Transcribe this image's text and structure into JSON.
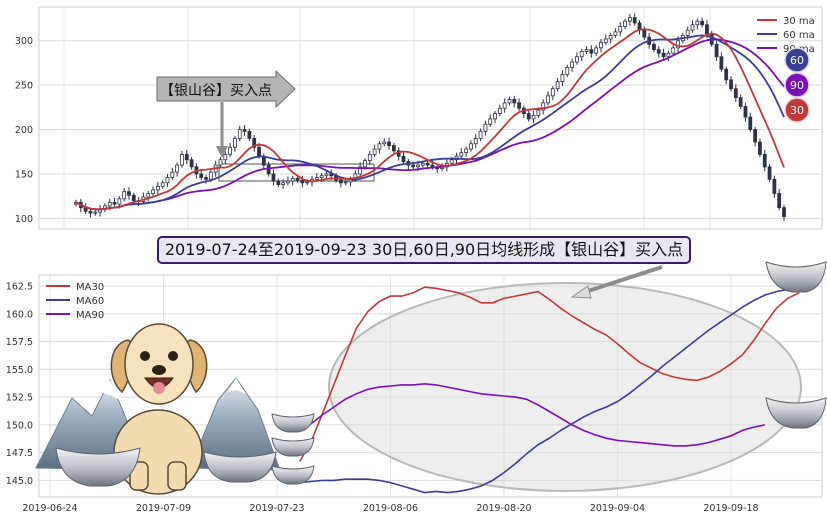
{
  "chart_data": [
    {
      "type": "candlestick",
      "yticks": [
        100,
        150,
        200,
        250,
        300
      ],
      "ylim": [
        88,
        338
      ],
      "legend": {
        "placement": "top-right",
        "entries": [
          "30 ma",
          "60 ma",
          "90 ma"
        ]
      },
      "series_colors": {
        "ma30": "#c0393b",
        "ma60": "#3a3f96",
        "ma90": "#7a10b8",
        "candle": "#2c3346"
      },
      "annotation": "【银山谷】买入点",
      "end_badges": [
        "60",
        "90",
        "30"
      ],
      "candles_close": [
        118,
        112,
        108,
        106,
        107,
        110,
        114,
        118,
        116,
        122,
        130,
        126,
        120,
        119,
        124,
        128,
        132,
        136,
        140,
        146,
        152,
        160,
        172,
        166,
        158,
        150,
        146,
        144,
        152,
        160,
        166,
        172,
        180,
        190,
        200,
        198,
        190,
        180,
        170,
        160,
        150,
        142,
        138,
        140,
        142,
        145,
        143,
        140,
        141,
        144,
        146,
        148,
        150,
        148,
        143,
        140,
        141,
        144,
        150,
        158,
        165,
        172,
        178,
        184,
        186,
        182,
        176,
        170,
        164,
        160,
        158,
        160,
        162,
        160,
        158,
        156,
        158,
        162,
        166,
        170,
        174,
        178,
        184,
        190,
        198,
        206,
        212,
        218,
        224,
        230,
        234,
        230,
        224,
        218,
        212,
        216,
        222,
        230,
        238,
        246,
        254,
        262,
        270,
        276,
        282,
        288,
        290,
        286,
        292,
        298,
        302,
        306,
        310,
        316,
        322,
        326,
        320,
        312,
        304,
        296,
        290,
        286,
        282,
        286,
        292,
        300,
        306,
        312,
        318,
        322,
        318,
        308,
        296,
        282,
        268,
        256,
        246,
        236,
        226,
        214,
        200,
        186,
        172,
        158,
        144,
        128,
        112,
        102
      ]
    },
    {
      "type": "line",
      "x_tick_labels": [
        "2019-06-24",
        "2019-07-09",
        "2019-07-23",
        "2019-08-06",
        "2019-08-20",
        "2019-09-04",
        "2019-09-18"
      ],
      "x_tick_index": [
        0,
        10,
        20,
        30,
        40,
        50,
        60
      ],
      "yticks": [
        145.0,
        147.5,
        150.0,
        152.5,
        155.0,
        157.5,
        160.0,
        162.5
      ],
      "ylim": [
        143.5,
        163.5
      ],
      "legend": {
        "placement": "top-left"
      },
      "annotation": "",
      "series": [
        {
          "name": "MA30",
          "color": "#c0393b",
          "start_index": 22,
          "values": [
            146.7,
            148.5,
            151.0,
            153.6,
            156.2,
            158.7,
            160.2,
            161.1,
            161.6,
            161.6,
            161.9,
            162.4,
            162.3,
            162.1,
            161.9,
            161.5,
            161.0,
            161.0,
            161.4,
            161.6,
            161.8,
            162.0,
            161.3,
            160.5,
            159.8,
            159.2,
            158.6,
            158.1,
            157.3,
            156.4,
            155.6,
            155.1,
            154.6,
            154.3,
            154.1,
            154.0,
            154.3,
            154.8,
            155.5,
            156.3,
            157.6,
            159.1,
            160.5,
            161.4,
            161.9
          ]
        },
        {
          "name": "MA60",
          "color": "#3a3f96",
          "start_index": 22,
          "values": [
            144.8,
            144.9,
            145.0,
            145.0,
            145.1,
            145.1,
            145.1,
            145.0,
            144.8,
            144.5,
            144.2,
            143.9,
            144.0,
            143.9,
            144.0,
            144.2,
            144.5,
            145.0,
            145.7,
            146.5,
            147.4,
            148.2,
            148.8,
            149.5,
            150.1,
            150.7,
            151.2,
            151.6,
            152.1,
            152.8,
            153.6,
            154.4,
            155.3,
            156.1,
            156.9,
            157.7,
            158.5,
            159.2,
            159.9,
            160.6,
            161.2,
            161.7,
            162.0,
            162.2
          ]
        },
        {
          "name": "MA90",
          "color": "#7a10b8",
          "start_index": 23,
          "values": [
            150.1,
            150.9,
            151.6,
            152.3,
            152.8,
            153.2,
            153.4,
            153.5,
            153.6,
            153.6,
            153.7,
            153.6,
            153.4,
            153.2,
            153.0,
            152.8,
            152.7,
            152.6,
            152.5,
            152.3,
            151.8,
            151.2,
            150.6,
            150.0,
            149.5,
            149.1,
            148.8,
            148.6,
            148.5,
            148.4,
            148.3,
            148.2,
            148.1,
            148.1,
            148.2,
            148.4,
            148.7,
            149.0,
            149.5,
            149.8,
            150.0
          ]
        }
      ]
    }
  ],
  "banner": {
    "text": "2019-07-24至2019-09-23 30日,60日,90日均线形成【银山谷】买入点"
  }
}
